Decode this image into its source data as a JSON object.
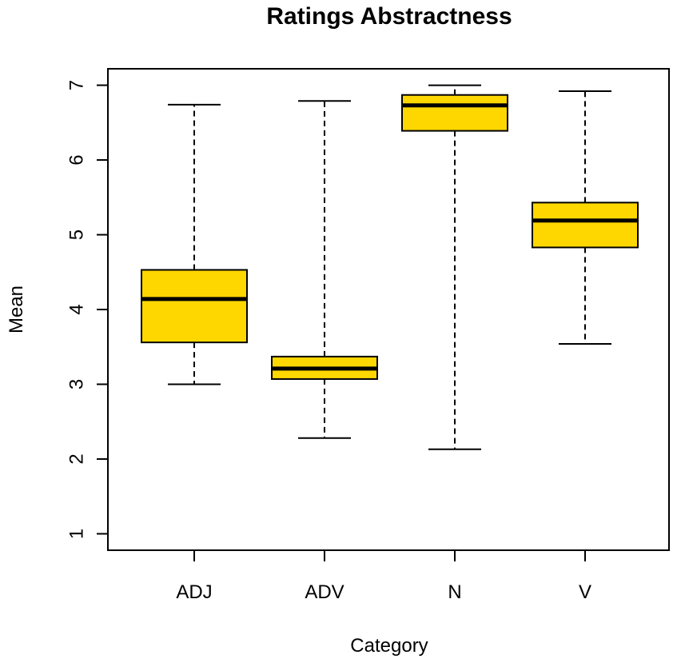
{
  "chart_data": {
    "type": "box",
    "title": "Ratings Abstractness",
    "xlabel": "Category",
    "ylabel": "Mean",
    "ylim": [
      0.78,
      7.22
    ],
    "yticks": [
      1,
      2,
      3,
      4,
      5,
      6,
      7
    ],
    "categories": [
      "ADJ",
      "ADV",
      "N",
      "V"
    ],
    "boxes": [
      {
        "category": "ADJ",
        "min": 3.0,
        "q1": 3.56,
        "median": 4.14,
        "q3": 4.53,
        "max": 6.74
      },
      {
        "category": "ADV",
        "min": 2.28,
        "q1": 3.07,
        "median": 3.21,
        "q3": 3.37,
        "max": 6.79
      },
      {
        "category": "N",
        "min": 2.13,
        "q1": 6.39,
        "median": 6.73,
        "q3": 6.87,
        "max": 7.0
      },
      {
        "category": "V",
        "min": 3.54,
        "q1": 4.83,
        "median": 5.19,
        "q3": 5.43,
        "max": 6.92
      }
    ],
    "box_fill": "#FFD700",
    "line_color": "#000000",
    "grid": false,
    "legend": "none"
  }
}
